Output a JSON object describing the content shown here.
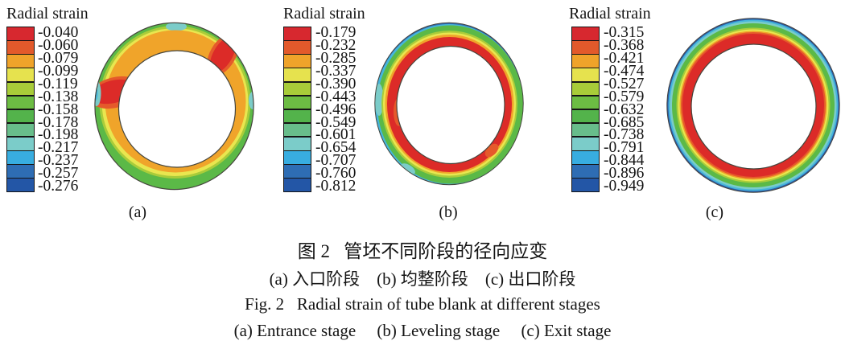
{
  "legend_title": "Radial strain",
  "palette": [
    "#d7282f",
    "#e2592b",
    "#efa32a",
    "#e6e24e",
    "#a8cc39",
    "#6cbc43",
    "#53b34b",
    "#68bd8b",
    "#7bccc9",
    "#38ade0",
    "#2e6db4",
    "#2356a6"
  ],
  "colors": {
    "outline": "#45453d",
    "ring_red": "#dc2b28",
    "ring_orange_red": "#e55a2b",
    "ring_orange": "#f0a42a",
    "ring_yellow": "#e9e64f",
    "ring_ygreen": "#a9cc3a",
    "ring_green": "#5bb947",
    "ring_teal": "#7bccc9",
    "ring_cyan": "#45b5dc",
    "ring_blue": "#2f6cb4",
    "ring_navy": "#2b5ca9",
    "hole": "#ffffff"
  },
  "panels": [
    {
      "label": "(a)",
      "description": "irregular annulus: orange body, green rim, red patches west and north-east, cyan flecks on rim",
      "values": [
        "-0.040",
        "-0.060",
        "-0.079",
        "-0.099",
        "-0.119",
        "-0.138",
        "-0.158",
        "-0.178",
        "-0.198",
        "-0.217",
        "-0.237",
        "-0.257",
        "-0.276"
      ]
    },
    {
      "label": "(b)",
      "description": "red inner band, thin yellow-orange transition, green outer band, cyan-blue fringe on rim",
      "values": [
        "-0.179",
        "-0.232",
        "-0.285",
        "-0.337",
        "-0.390",
        "-0.443",
        "-0.496",
        "-0.549",
        "-0.601",
        "-0.654",
        "-0.707",
        "-0.760",
        "-0.812"
      ]
    },
    {
      "label": "(c)",
      "description": "concentric bands: red inner, yellow, green, cyan, dark-blue outer edge",
      "values": [
        "-0.315",
        "-0.368",
        "-0.421",
        "-0.474",
        "-0.527",
        "-0.579",
        "-0.632",
        "-0.685",
        "-0.738",
        "-0.791",
        "-0.844",
        "-0.896",
        "-0.949"
      ]
    }
  ],
  "captions": {
    "zh_title": "图 2   管坯不同阶段的径向应变",
    "zh_sub": "(a) 入口阶段    (b) 均整阶段    (c) 出口阶段",
    "en_title": "Fig. 2   Radial strain of tube blank at different stages",
    "en_sub": "(a) Entrance stage     (b) Leveling stage     (c) Exit stage"
  }
}
